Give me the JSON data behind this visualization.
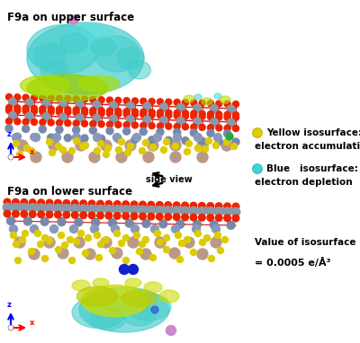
{
  "title_upper": "F9a on upper surface",
  "title_lower": "F9a on lower surface",
  "side_view_label": "side view",
  "legend_items": [
    {
      "color": "#d4d400",
      "label1": "Yellow isosurface:",
      "label2": "electron accumulation"
    },
    {
      "color": "#3dd4d4",
      "label1": "Blue   isosurface:",
      "label2": "electron depletion"
    }
  ],
  "value_label1": "Value of isosurface",
  "value_label2": "= 0.0005 e/Å³",
  "bg_color": "#ffffff",
  "fig_width": 4.0,
  "fig_height": 3.82,
  "dpi": 100
}
